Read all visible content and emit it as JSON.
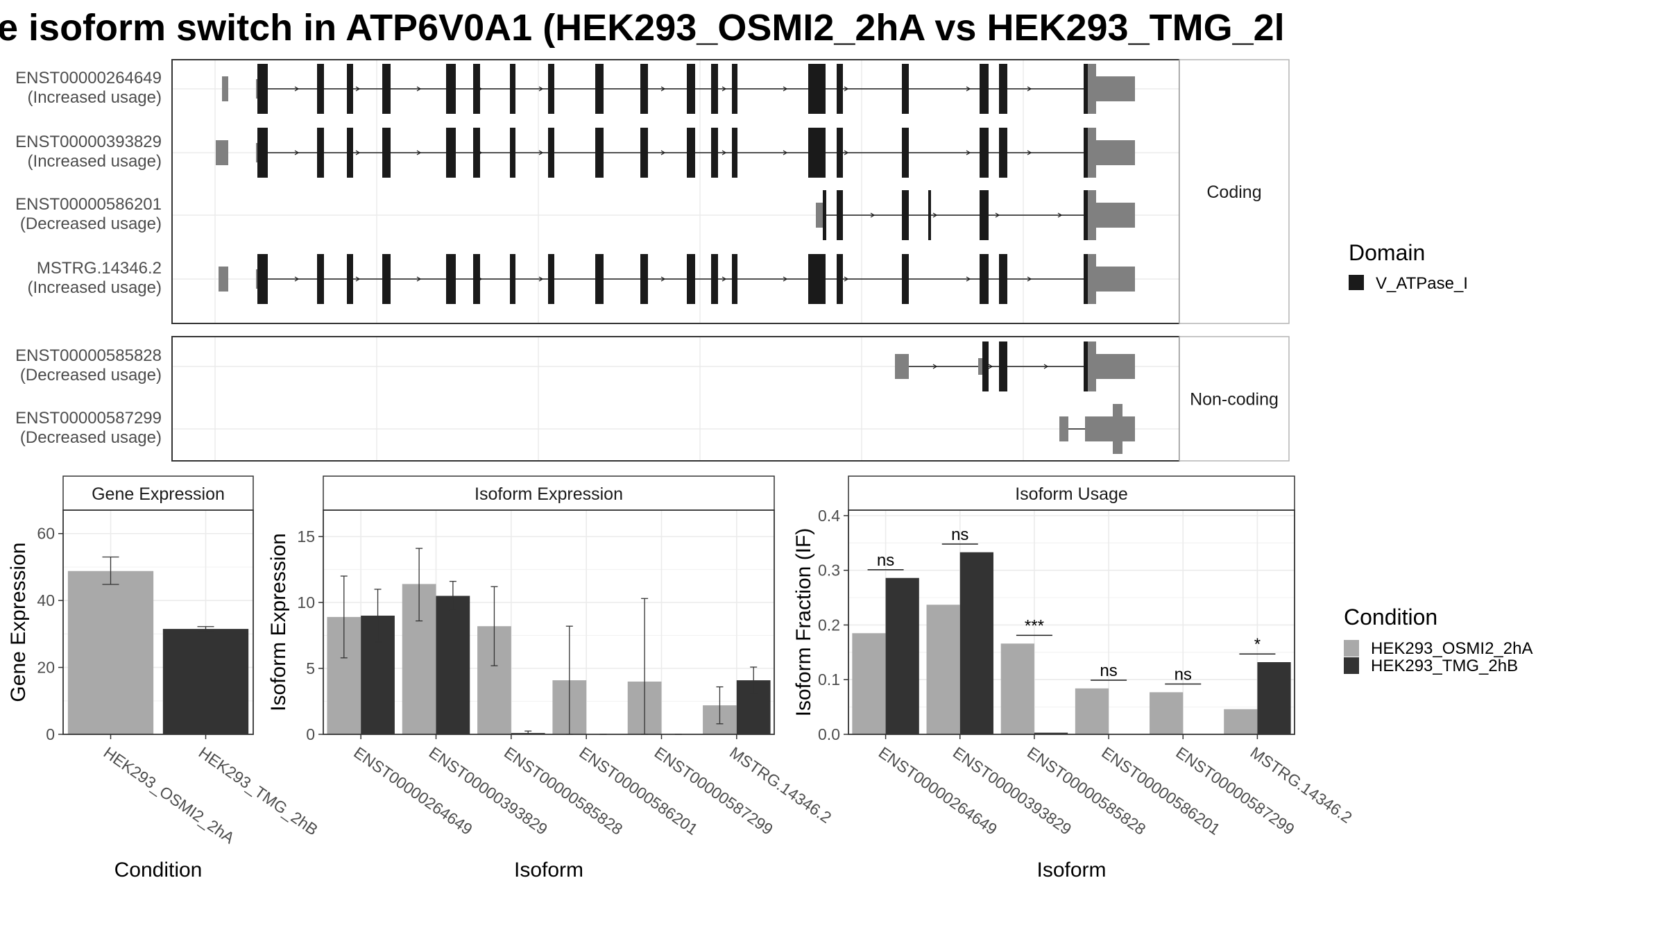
{
  "title": "e isoform switch in ATP6V0A1 (HEK293_OSMI2_2hA vs HEK293_TMG_2l",
  "colors": {
    "cond_a": "#a9a9a9",
    "cond_b": "#333333",
    "domain": "#1a1a1a",
    "utr": "#808080",
    "panel_border": "#333333",
    "strip_fill": "#ffffff",
    "grid": "#ebebeb"
  },
  "structure_panel": {
    "groups": [
      {
        "label": "Coding",
        "isoforms": [
          {
            "id": "ENST00000264649",
            "usage": "(Increased usage)",
            "full": true,
            "first_utr": "small"
          },
          {
            "id": "ENST00000393829",
            "usage": "(Increased usage)",
            "full": true,
            "first_utr": "large"
          },
          {
            "id": "ENST00000586201",
            "usage": "(Decreased usage)",
            "full": false,
            "variant": "short_coding"
          },
          {
            "id": "MSTRG.14346.2",
            "usage": "(Increased usage)",
            "full": true,
            "first_utr": "mid"
          }
        ]
      },
      {
        "label": "Non-coding",
        "isoforms": [
          {
            "id": "ENST00000585828",
            "usage": "(Decreased usage)",
            "variant": "noncoding_a"
          },
          {
            "id": "ENST00000587299",
            "usage": "(Decreased usage)",
            "variant": "noncoding_b"
          }
        ]
      }
    ],
    "legend": {
      "title": "Domain",
      "items": [
        {
          "label": "V_ATPase_I",
          "color": "#1a1a1a"
        }
      ]
    }
  },
  "chart_data": [
    {
      "type": "bar",
      "title": "Gene Expression",
      "xlabel": "Condition",
      "ylabel": "Gene Expression",
      "ylim": [
        0,
        67
      ],
      "yticks": [
        0,
        20,
        40,
        60
      ],
      "categories": [
        "HEK293_OSMI2_2hA",
        "HEK293_TMG_2hB"
      ],
      "values": [
        48.8,
        31.5
      ],
      "err_low": [
        44.8,
        31.0
      ],
      "err_high": [
        53.0,
        32.2
      ],
      "colors": [
        "#a9a9a9",
        "#333333"
      ]
    },
    {
      "type": "bar",
      "title": "Isoform Expression",
      "xlabel": "Isoform",
      "ylabel": "Isoform Expression",
      "ylim": [
        0,
        17
      ],
      "yticks": [
        0,
        5,
        10,
        15
      ],
      "categories": [
        "ENST00000264649",
        "ENST00000393829",
        "ENST00000585828",
        "ENST00000586201",
        "ENST00000587299",
        "MSTRG.14346.2"
      ],
      "series": [
        {
          "name": "HEK293_OSMI2_2hA",
          "values": [
            8.9,
            11.4,
            8.2,
            4.1,
            4.0,
            2.2
          ],
          "err_low": [
            5.8,
            8.6,
            5.2,
            0.0,
            0.0,
            0.8
          ],
          "err_high": [
            12.0,
            14.1,
            11.2,
            8.2,
            10.3,
            3.6
          ]
        },
        {
          "name": "HEK293_TMG_2hB",
          "values": [
            9.0,
            10.5,
            0.1,
            0.0,
            0.0,
            4.1
          ],
          "err_low": [
            7.0,
            9.4,
            0.05,
            0.0,
            0.0,
            3.1
          ],
          "err_high": [
            11.0,
            11.6,
            0.25,
            0.0,
            0.0,
            5.1
          ]
        }
      ]
    },
    {
      "type": "bar",
      "title": "Isoform Usage",
      "xlabel": "Isoform",
      "ylabel": "Isoform Fraction (IF)",
      "ylim": [
        0,
        0.41
      ],
      "yticks": [
        0.0,
        0.1,
        0.2,
        0.3,
        0.4
      ],
      "ytick_labels": [
        "0.0",
        "0.1",
        "0.2",
        "0.3",
        "0.4"
      ],
      "categories": [
        "ENST00000264649",
        "ENST00000393829",
        "ENST00000585828",
        "ENST00000586201",
        "ENST00000587299",
        "MSTRG.14346.2"
      ],
      "series": [
        {
          "name": "HEK293_OSMI2_2hA",
          "values": [
            0.185,
            0.237,
            0.166,
            0.084,
            0.077,
            0.046
          ]
        },
        {
          "name": "HEK293_TMG_2hB",
          "values": [
            0.286,
            0.333,
            0.003,
            0.0,
            0.0,
            0.132
          ]
        }
      ],
      "significance": [
        "ns",
        "ns",
        "***",
        "ns",
        "ns",
        "*"
      ],
      "sig_y": [
        0.301,
        0.348,
        0.181,
        0.099,
        0.092,
        0.147
      ]
    }
  ],
  "condition_legend": {
    "title": "Condition",
    "items": [
      {
        "label": "HEK293_OSMI2_2hA",
        "color": "#a9a9a9"
      },
      {
        "label": "HEK293_TMG_2hB",
        "color": "#333333"
      }
    ]
  }
}
